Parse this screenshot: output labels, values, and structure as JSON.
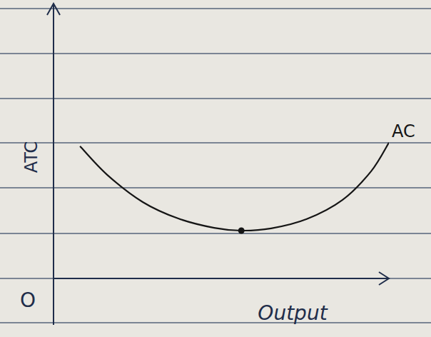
{
  "chart_data": {
    "type": "line",
    "x_label": "Output",
    "y_label": "ATC",
    "annotations": [
      {
        "text": "O",
        "x": 0,
        "y": 0
      }
    ],
    "xlim": [
      0,
      10
    ],
    "ylim": [
      0,
      10
    ],
    "tick_labels": false,
    "grid": false,
    "series": [
      {
        "name": "AC",
        "color": "#151515",
        "line_style": "solid",
        "x": [
          0.79,
          1.6,
          2.66,
          3.72,
          4.79,
          5.6,
          6.49,
          7.55,
          8.62,
          9.47,
          10
        ],
        "values": [
          4.81,
          3.77,
          2.78,
          2.18,
          1.84,
          1.74,
          1.82,
          2.16,
          2.86,
          3.9,
          4.94
        ]
      },
      {
        "type": "scatter",
        "marker": "dot",
        "color": "#151515",
        "x": [
          5.6
        ],
        "values": [
          1.74
        ]
      }
    ]
  }
}
